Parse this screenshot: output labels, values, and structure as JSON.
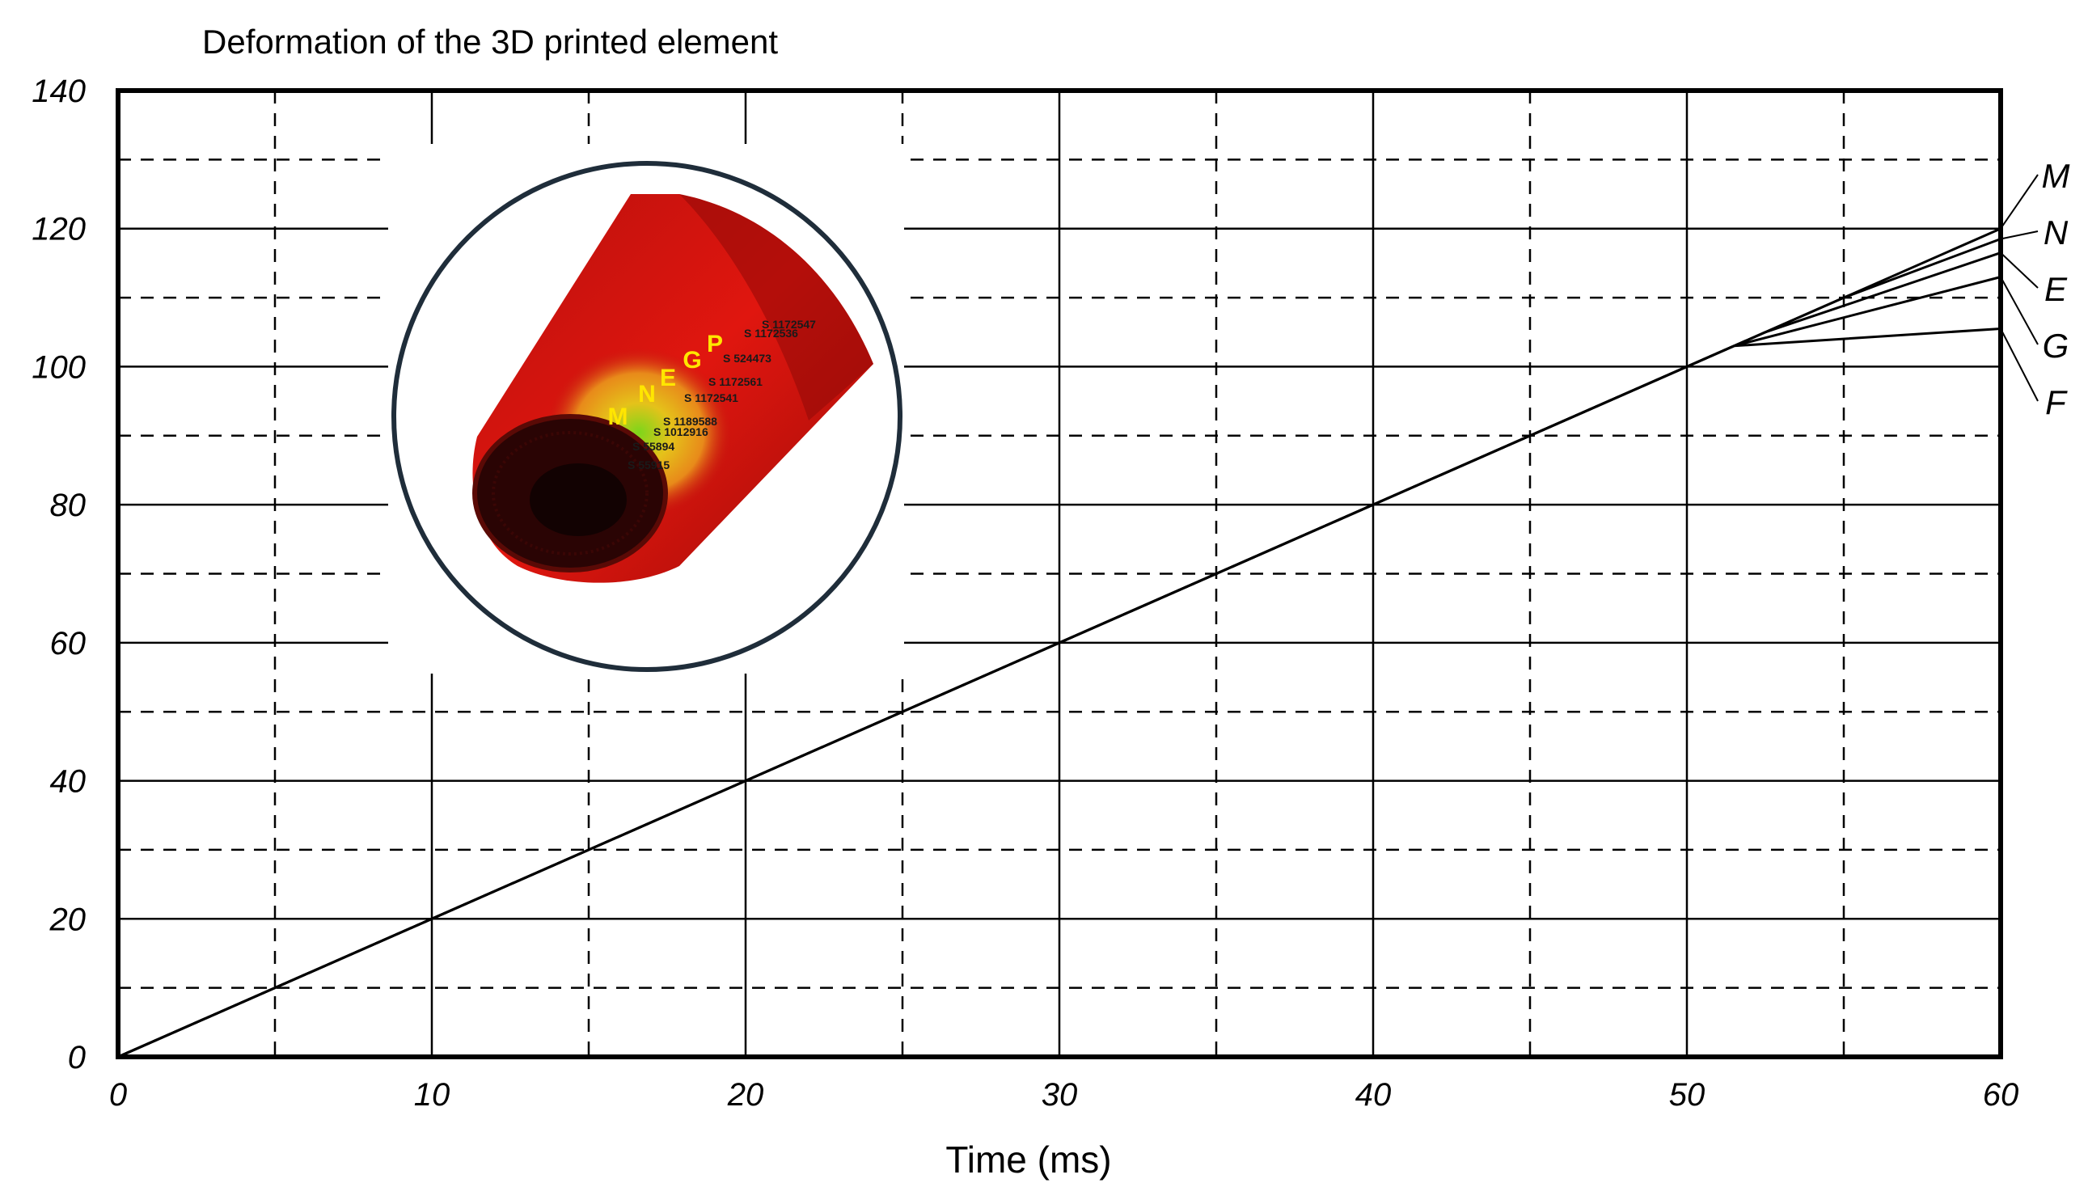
{
  "chart_data": {
    "type": "line",
    "title": "Deformation  of the 3D printed element",
    "xlabel": "Time (ms)",
    "ylabel": "",
    "xlim": [
      0,
      60
    ],
    "ylim": [
      0,
      140
    ],
    "x_ticks": [
      "0",
      "10",
      "20",
      "30",
      "40",
      "50",
      "60"
    ],
    "y_ticks": [
      "0",
      "20",
      "40",
      "60",
      "80",
      "100",
      "120",
      "140"
    ],
    "grid": "solid major, dashed minor",
    "series": [
      {
        "name": "M",
        "x": [
          0,
          55,
          60
        ],
        "y": [
          0,
          110,
          120
        ]
      },
      {
        "name": "N",
        "x": [
          0,
          55,
          60
        ],
        "y": [
          0,
          110,
          118.5
        ]
      },
      {
        "name": "E",
        "x": [
          0,
          52.5,
          60
        ],
        "y": [
          0,
          105,
          116.5
        ]
      },
      {
        "name": "G",
        "x": [
          0,
          51.5,
          60
        ],
        "y": [
          0,
          103,
          113
        ]
      },
      {
        "name": "F",
        "x": [
          0,
          51.5,
          60
        ],
        "y": [
          0,
          103,
          105.5
        ]
      }
    ],
    "legend_position": "right"
  },
  "inset": {
    "point_labels": [
      "M",
      "N",
      "E",
      "G",
      "P"
    ],
    "node_labels": [
      "S 1172547",
      "S 1172536",
      "S 524473",
      "S 1172561",
      "S 1172541",
      "S 1189588",
      "S 1012916",
      "S 55894",
      "S 55915"
    ]
  }
}
